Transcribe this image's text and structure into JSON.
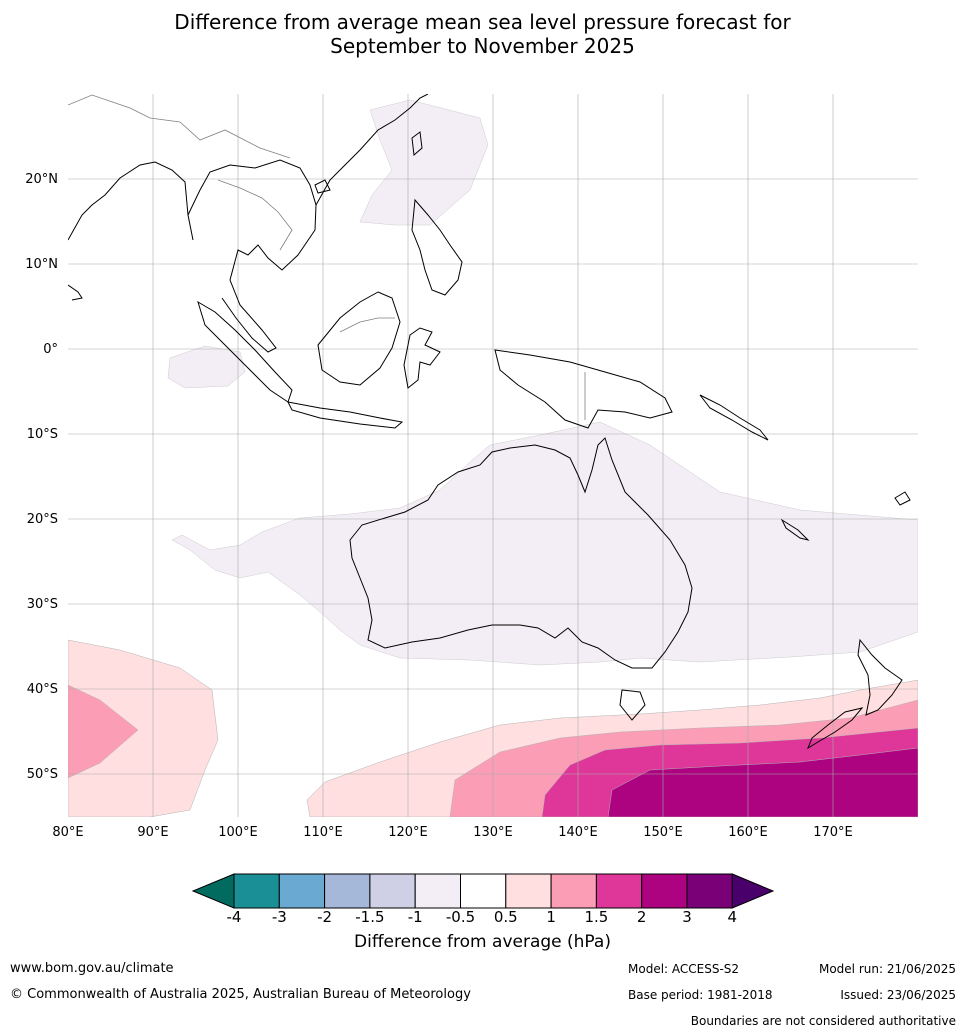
{
  "title_line1": "Difference from average mean sea level pressure forecast for",
  "title_line2": "September to November 2025",
  "map": {
    "lon_ticks": [
      "80°E",
      "90°E",
      "100°E",
      "110°E",
      "120°E",
      "130°E",
      "140°E",
      "150°E",
      "160°E",
      "170°E"
    ],
    "lat_ticks": [
      "20°N",
      "10°N",
      "0°",
      "10°S",
      "20°S",
      "30°S",
      "40°S",
      "50°S"
    ],
    "lon_range": [
      80,
      180
    ],
    "lat_range": [
      -55,
      30
    ],
    "grid": true
  },
  "colorbar": {
    "title": "Difference from average (hPa)",
    "tick_labels": [
      "-4",
      "-3",
      "-2",
      "-1.5",
      "-1",
      "-0.5",
      "0.5",
      "1",
      "1.5",
      "2",
      "3",
      "4"
    ],
    "colors": {
      "below_-4": "#006b5e",
      "-4_-3": "#1a8f96",
      "-3_-2": "#6aaad2",
      "-2_-1.5": "#a5b8d9",
      "-1.5_-1": "#cfd0e6",
      "-1_-0.5": "#f3eef6",
      "-0.5_0.5": "#ffffff",
      "0.5_1": "#ffdfe0",
      "1_1.5": "#fa9db5",
      "1.5_2": "#de3799",
      "2_3": "#ad0380",
      "3_4": "#790077",
      "above_4": "#4a006a"
    }
  },
  "footer": {
    "url": "www.bom.gov.au/climate",
    "copyright": "© Commonwealth of Australia 2025, Australian Bureau of Meteorology",
    "model": "Model: ACCESS-S2",
    "base_period": "Base period: 1981-2018",
    "model_run": "Model run: 21/06/2025",
    "issued": "Issued: 23/06/2025",
    "disclaimer": "Boundaries are not considered authoritative"
  }
}
